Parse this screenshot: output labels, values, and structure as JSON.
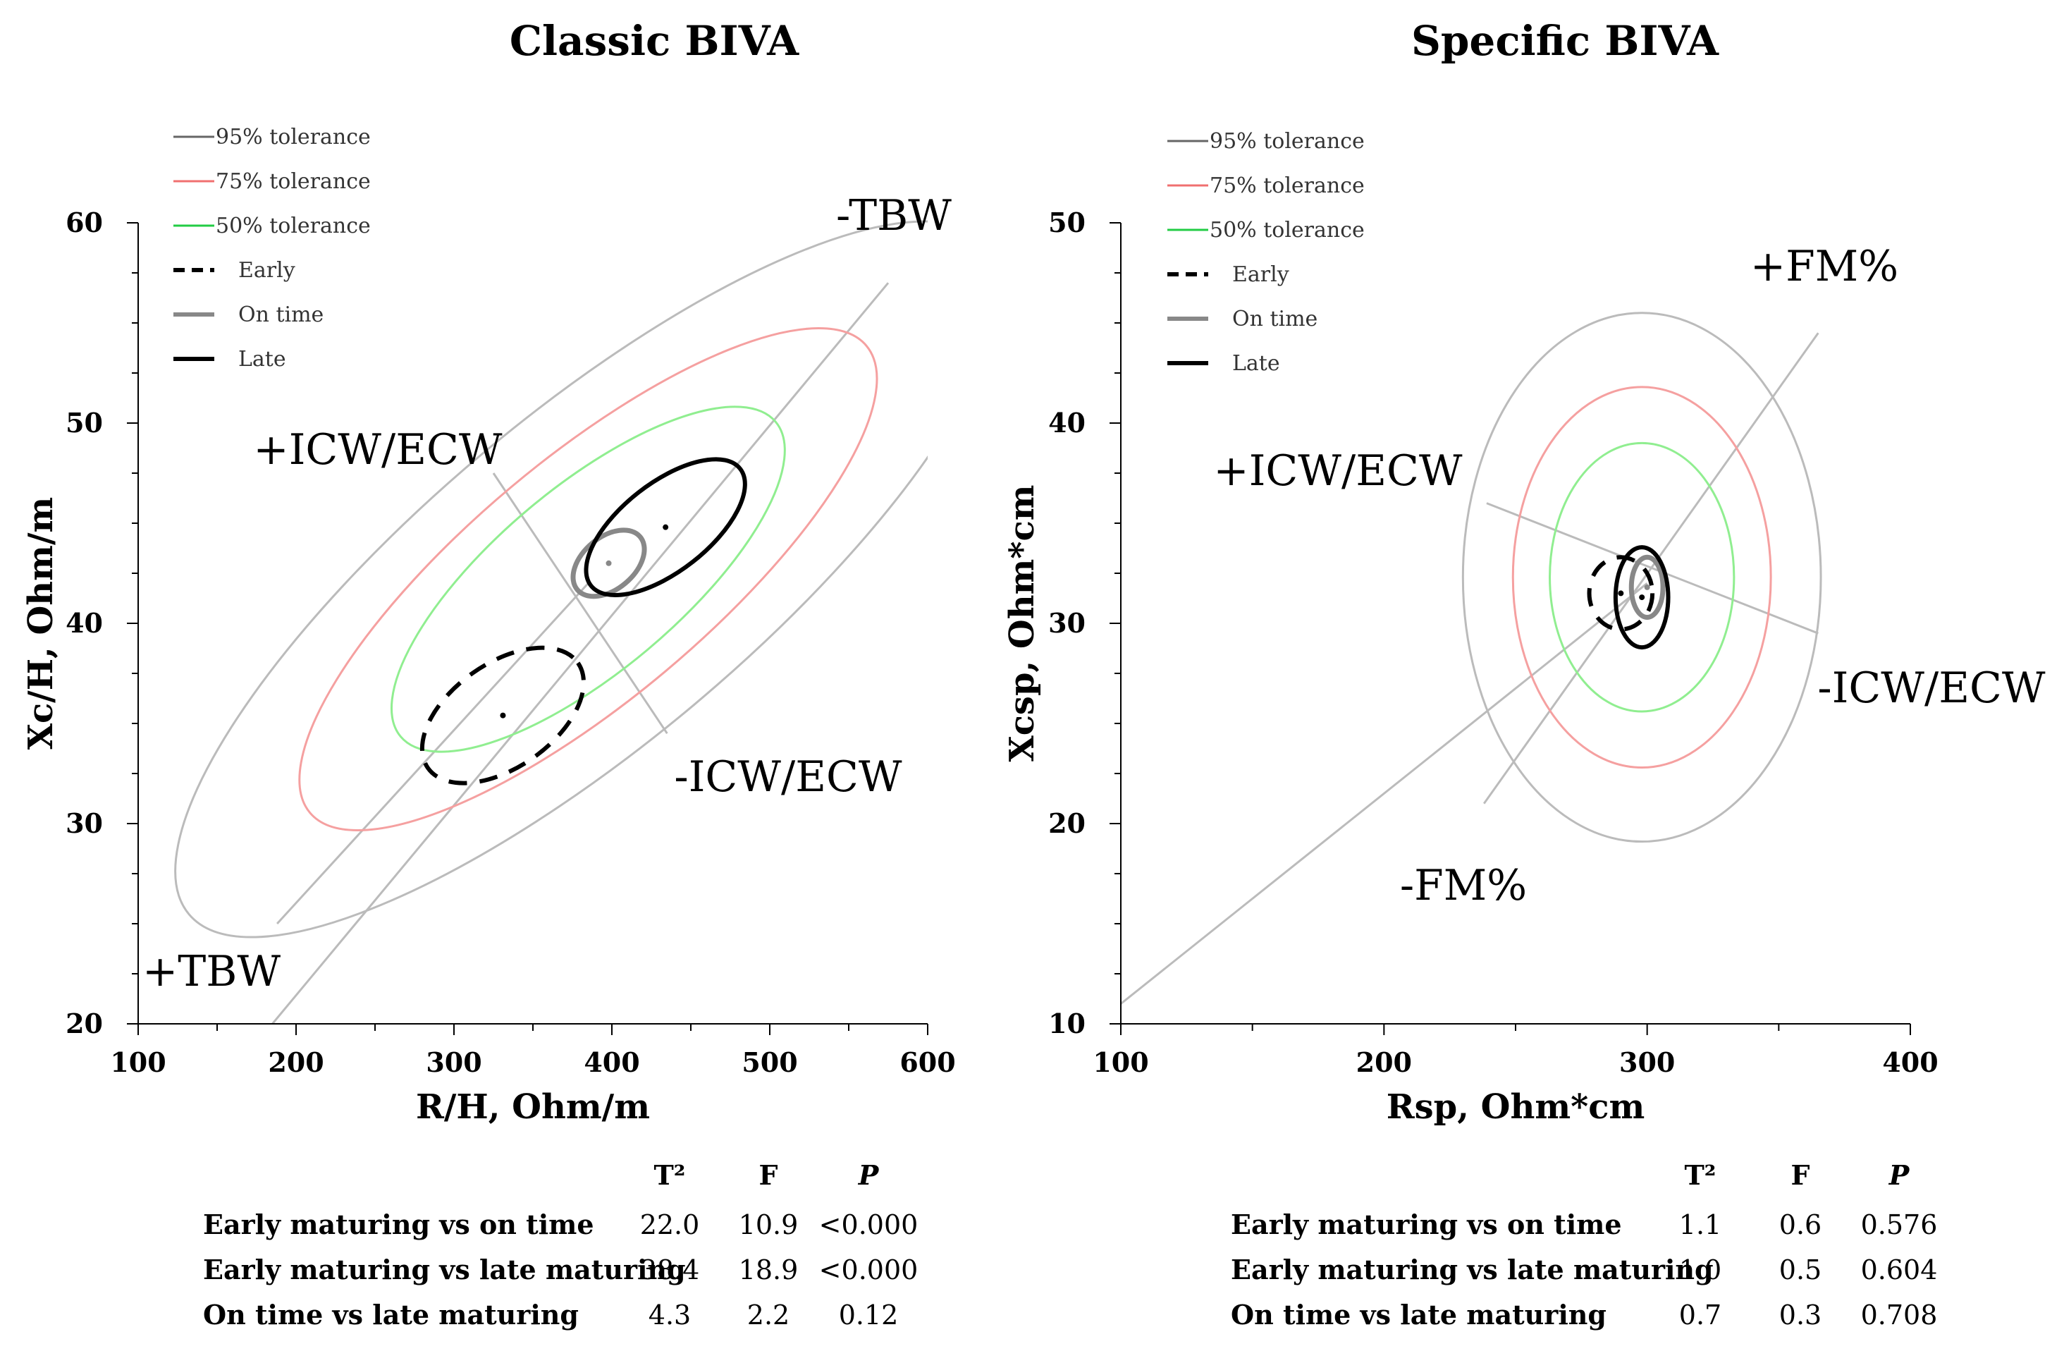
{
  "chart_data": [
    {
      "type": "scatter",
      "title": "Classic BIVA",
      "xlabel": "R/H, Ohm/m",
      "ylabel": "Xc/H, Ohm/m",
      "xlim": [
        100,
        600
      ],
      "ylim": [
        20,
        60
      ],
      "xticks": [
        100,
        200,
        300,
        400,
        500,
        600
      ],
      "yticks": [
        20,
        30,
        40,
        50,
        60
      ],
      "xtick_labels": [
        "100",
        "200",
        "300",
        "400",
        "500",
        "600"
      ],
      "ytick_labels": [
        "20",
        "30",
        "40",
        "50",
        "60"
      ],
      "grid": false,
      "legend_position": "top-left",
      "legend": [
        {
          "label": "95% tolerance",
          "color": "#666666",
          "style": "solid-thin"
        },
        {
          "label": "75% tolerance",
          "color": "#f07070",
          "style": "solid-thin"
        },
        {
          "label": "50% tolerance",
          "color": "#22cc44",
          "style": "solid-thin"
        },
        {
          "label": "Early",
          "color": "#000000",
          "style": "dashed-thick"
        },
        {
          "label": "On time",
          "color": "#888888",
          "style": "solid-thick"
        },
        {
          "label": "Late",
          "color": "#000000",
          "style": "solid-thick"
        }
      ],
      "annotations": [
        "-TBW",
        "+TBW",
        "+ICW/ECW",
        "-ICW/ECW"
      ],
      "series": [
        {
          "name": "95% tolerance",
          "kind": "ellipse",
          "center": [
            385,
            42.2
          ],
          "rx": 330,
          "ry": 8.2,
          "angle": 40,
          "color": "#bbbbbb"
        },
        {
          "name": "75% tolerance",
          "kind": "ellipse",
          "center": [
            385,
            42.2
          ],
          "rx": 230,
          "ry": 6.0,
          "angle": 40,
          "color": "#f5a0a0"
        },
        {
          "name": "50% tolerance",
          "kind": "ellipse",
          "center": [
            385,
            42.2
          ],
          "rx": 155,
          "ry": 4.6,
          "angle": 40,
          "color": "#90ee90"
        },
        {
          "name": "Early",
          "kind": "ellipse",
          "center": [
            331,
            35.4
          ],
          "rx": 58,
          "ry": 2.6,
          "angle": 35,
          "color": "#000000",
          "dashed": true
        },
        {
          "name": "On time",
          "kind": "ellipse",
          "center": [
            398,
            43.0
          ],
          "rx": 26,
          "ry": 1.3,
          "angle": 40,
          "color": "#888888"
        },
        {
          "name": "Late",
          "kind": "ellipse",
          "center": [
            434,
            44.8
          ],
          "rx": 60,
          "ry": 2.2,
          "angle": 38,
          "color": "#000000"
        },
        {
          "name": "Major axis",
          "kind": "line",
          "x": [
            185,
            575
          ],
          "y": [
            20,
            57
          ],
          "color": "#bbbbbb"
        },
        {
          "name": "Minor axis",
          "kind": "line",
          "x": [
            325,
            435
          ],
          "y": [
            47.5,
            34.5
          ],
          "color": "#bbbbbb"
        },
        {
          "name": "TBW line",
          "kind": "line",
          "x": [
            188,
            385
          ],
          "y": [
            25,
            42
          ],
          "color": "#bbbbbb"
        }
      ],
      "table": {
        "headers": [
          "T²",
          "F",
          "P"
        ],
        "rows": [
          {
            "label": "Early maturing vs on time",
            "values": [
              "22.0",
              "10.9",
              "<0.000"
            ]
          },
          {
            "label": "Early maturing vs late maturing",
            "values": [
              "38.4",
              "18.9",
              "<0.000"
            ]
          },
          {
            "label": "On time vs late maturing",
            "values": [
              "4.3",
              "2.2",
              "0.12"
            ]
          }
        ]
      }
    },
    {
      "type": "scatter",
      "title": "Specific BIVA",
      "xlabel": "Rsp, Ohm*cm",
      "ylabel": "Xcsp, Ohm*cm",
      "xlim": [
        100,
        400
      ],
      "ylim": [
        10,
        50
      ],
      "xticks": [
        100,
        200,
        300,
        400
      ],
      "yticks": [
        10,
        20,
        30,
        40,
        50
      ],
      "xtick_labels": [
        "100",
        "200",
        "300",
        "400"
      ],
      "ytick_labels": [
        "10",
        "20",
        "30",
        "40",
        "50"
      ],
      "grid": false,
      "legend_position": "top-left",
      "legend": [
        {
          "label": "95% tolerance",
          "color": "#666666",
          "style": "solid-thin"
        },
        {
          "label": "75% tolerance",
          "color": "#f07070",
          "style": "solid-thin"
        },
        {
          "label": "50% tolerance",
          "color": "#22cc44",
          "style": "solid-thin"
        },
        {
          "label": "Early",
          "color": "#000000",
          "style": "dashed-thick"
        },
        {
          "label": "On time",
          "color": "#888888",
          "style": "solid-thick"
        },
        {
          "label": "Late",
          "color": "#000000",
          "style": "solid-thick"
        }
      ],
      "annotations": [
        "+FM%",
        "-FM%",
        "+ICW/ECW",
        "-ICW/ECW"
      ],
      "series": [
        {
          "name": "95% tolerance",
          "kind": "ellipse",
          "center": [
            298,
            32.3
          ],
          "rx": 68,
          "ry": 13.2,
          "angle": 0,
          "color": "#bbbbbb"
        },
        {
          "name": "75% tolerance",
          "kind": "ellipse",
          "center": [
            298,
            32.3
          ],
          "rx": 49,
          "ry": 9.5,
          "angle": 0,
          "color": "#f5a0a0"
        },
        {
          "name": "50% tolerance",
          "kind": "ellipse",
          "center": [
            298,
            32.3
          ],
          "rx": 35,
          "ry": 6.7,
          "angle": 0,
          "color": "#90ee90"
        },
        {
          "name": "Early",
          "kind": "ellipse",
          "center": [
            290,
            31.5
          ],
          "rx": 12,
          "ry": 1.8,
          "angle": 0,
          "color": "#000000",
          "dashed": true
        },
        {
          "name": "On time",
          "kind": "ellipse",
          "center": [
            300,
            31.8
          ],
          "rx": 6,
          "ry": 1.5,
          "angle": 0,
          "color": "#888888"
        },
        {
          "name": "Late",
          "kind": "ellipse",
          "center": [
            298,
            31.3
          ],
          "rx": 10,
          "ry": 2.5,
          "angle": 0,
          "color": "#000000"
        },
        {
          "name": "Major axis",
          "kind": "line",
          "x": [
            238,
            365
          ],
          "y": [
            21,
            44.5
          ],
          "color": "#bbbbbb"
        },
        {
          "name": "Minor axis",
          "kind": "line",
          "x": [
            239,
            365
          ],
          "y": [
            36,
            29.5
          ],
          "color": "#bbbbbb"
        },
        {
          "name": "FM line",
          "kind": "line",
          "x": [
            100,
            300
          ],
          "y": [
            11,
            32
          ],
          "color": "#bbbbbb"
        }
      ],
      "table": {
        "headers": [
          "T²",
          "F",
          "P"
        ],
        "rows": [
          {
            "label": "Early maturing vs on time",
            "values": [
              "1.1",
              "0.6",
              "0.576"
            ]
          },
          {
            "label": "Early maturing vs late maturing",
            "values": [
              "1.0",
              "0.5",
              "0.604"
            ]
          },
          {
            "label": "On time vs late maturing",
            "values": [
              "0.7",
              "0.3",
              "0.708"
            ]
          }
        ]
      }
    }
  ]
}
